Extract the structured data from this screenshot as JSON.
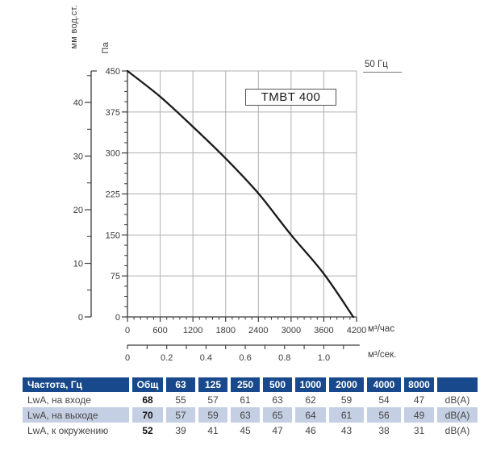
{
  "chart_data": {
    "type": "line",
    "title": "TMBT 400",
    "frequency_label": "50 Гц",
    "pa_axis": {
      "unit": "Па",
      "ticks": [
        450,
        375,
        300,
        225,
        150,
        75,
        0
      ],
      "max": 450,
      "minor_divisions_per_major": 4
    },
    "mm_axis": {
      "unit": "мм вод.ст.",
      "ticks": [
        40,
        30,
        20,
        10,
        0
      ],
      "minor_step": 5,
      "pa_per_mm": 9.81
    },
    "x_axis": {
      "unit": "м³/час",
      "ticks": [
        0,
        600,
        1200,
        1800,
        2400,
        3000,
        3600,
        4200
      ],
      "minor_step": 120,
      "max": 4200
    },
    "x_axis_secondary": {
      "unit": "м³/сек.",
      "tick_labels": [
        "0",
        "0.2",
        "0.4",
        "0.6",
        "0.8",
        "1.0"
      ],
      "label_step": 0.2,
      "minor_step": 0.1,
      "last_tick": 1.1,
      "m3h_per_m3s": 3600
    },
    "series": [
      {
        "name": "TMBT 400 pressure curve",
        "points": [
          [
            0,
            450
          ],
          [
            600,
            403
          ],
          [
            1200,
            348
          ],
          [
            1800,
            290
          ],
          [
            2400,
            226
          ],
          [
            3000,
            150
          ],
          [
            3600,
            79
          ],
          [
            4140,
            0
          ]
        ]
      }
    ],
    "grid": true,
    "legend": "none"
  },
  "table": {
    "header": [
      "Частота, Гц",
      "Общ",
      "63",
      "125",
      "250",
      "500",
      "1000",
      "2000",
      "4000",
      "8000",
      ""
    ],
    "rows": [
      {
        "label": "LwA, на входе",
        "total": "68",
        "values": [
          "55",
          "57",
          "61",
          "63",
          "62",
          "59",
          "54",
          "47"
        ],
        "unit": "dB(A)",
        "highlight": false
      },
      {
        "label": "LwA, на выходе",
        "total": "70",
        "values": [
          "57",
          "59",
          "63",
          "65",
          "64",
          "61",
          "56",
          "49"
        ],
        "unit": "dB(A)",
        "highlight": true
      },
      {
        "label": "LwA, к окружению",
        "total": "52",
        "values": [
          "39",
          "41",
          "45",
          "47",
          "46",
          "43",
          "38",
          "31"
        ],
        "unit": "dB(A)",
        "highlight": false
      }
    ]
  },
  "colors": {
    "header_bg": "#17498C",
    "row_highlight": "#C5CFE3",
    "curve": "#1A1A1A",
    "grid": "#AFAFAF",
    "axis": "#3A3A3A",
    "tick_text": "#3A3A3A"
  }
}
